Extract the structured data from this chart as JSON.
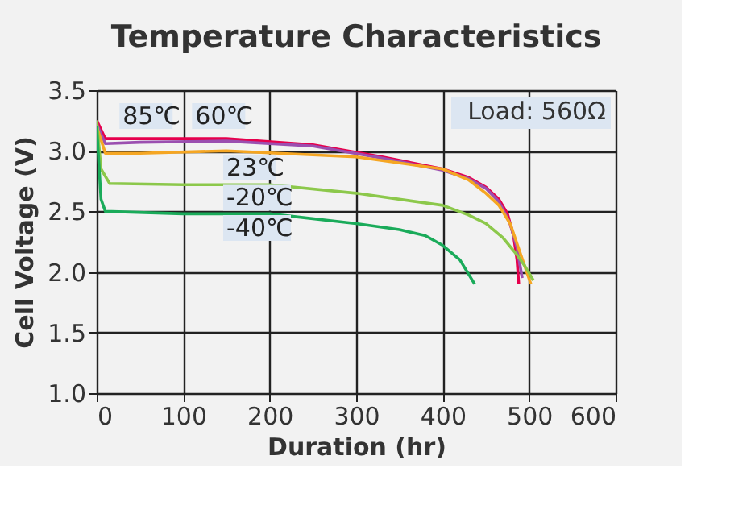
{
  "chart_data": {
    "type": "line",
    "title": "Temperature Characteristics",
    "xlabel": "Duration (hr)",
    "ylabel": "Cell Voltage (V)",
    "annotations": [
      "Load: 560Ω"
    ],
    "xlim": [
      0,
      600
    ],
    "xticks": [
      0,
      100,
      200,
      300,
      400,
      500,
      600
    ],
    "ylim": [
      1.0,
      3.5
    ],
    "yticks": [
      {
        "value": 1,
        "label": "1.0"
      },
      1.5,
      {
        "value": 2,
        "label": "2.0"
      },
      2.5,
      {
        "value": 3,
        "label": "3.0"
      },
      3.5
    ],
    "grid": true,
    "legend": false,
    "marker": "none",
    "line_style": "solid",
    "series": [
      {
        "name": "85℃",
        "color": "#e6004c",
        "x": [
          0,
          10,
          50,
          150,
          250,
          330,
          400,
          430,
          450,
          465,
          475,
          482,
          486,
          488
        ],
        "values": [
          3.25,
          3.1,
          3.1,
          3.1,
          3.05,
          2.95,
          2.85,
          2.78,
          2.7,
          2.6,
          2.48,
          2.3,
          2.1,
          1.9
        ]
      },
      {
        "name": "60℃",
        "color": "#9b4fb0",
        "x": [
          0,
          10,
          50,
          150,
          250,
          330,
          400,
          430,
          450,
          465,
          478,
          486,
          492
        ],
        "values": [
          3.22,
          3.06,
          3.07,
          3.08,
          3.04,
          2.94,
          2.84,
          2.77,
          2.69,
          2.58,
          2.4,
          2.2,
          1.95
        ]
      },
      {
        "name": "23℃",
        "color": "#f5a623",
        "x": [
          0,
          10,
          50,
          150,
          300,
          400,
          430,
          450,
          465,
          478,
          490,
          502
        ],
        "values": [
          3.2,
          2.98,
          2.98,
          3.0,
          2.95,
          2.85,
          2.76,
          2.65,
          2.55,
          2.4,
          2.15,
          1.9
        ]
      },
      {
        "name": "-20℃",
        "color": "#8cc84b",
        "x": [
          0,
          5,
          15,
          100,
          200,
          300,
          400,
          430,
          450,
          470,
          485,
          495,
          505
        ],
        "values": [
          3.25,
          2.85,
          2.73,
          2.72,
          2.72,
          2.65,
          2.55,
          2.47,
          2.4,
          2.28,
          2.15,
          2.05,
          1.93
        ]
      },
      {
        "name": "-40℃",
        "color": "#1aab5a",
        "x": [
          0,
          5,
          10,
          100,
          200,
          300,
          350,
          380,
          400,
          420,
          437
        ],
        "values": [
          3.2,
          2.6,
          2.5,
          2.48,
          2.48,
          2.4,
          2.35,
          2.3,
          2.22,
          2.1,
          1.9
        ]
      }
    ]
  }
}
